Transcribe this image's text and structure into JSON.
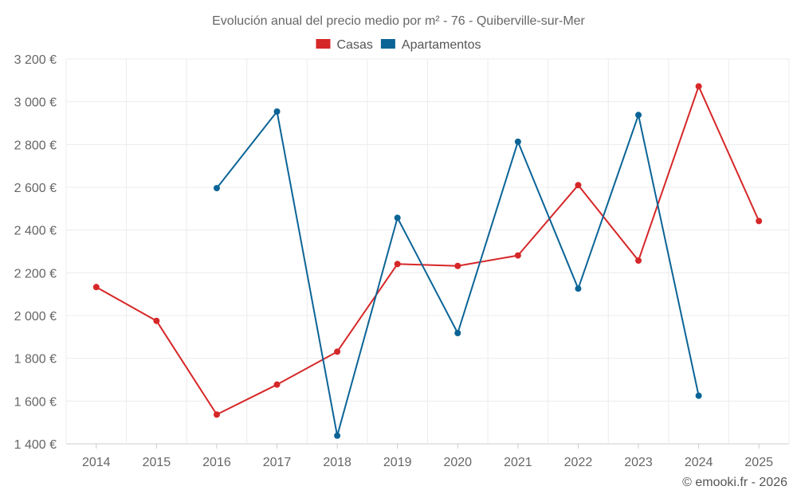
{
  "chart_data": {
    "type": "line",
    "title": "Evolución anual del precio medio por m² - 76 - Quiberville-sur-Mer",
    "categories": [
      "2014",
      "2015",
      "2016",
      "2017",
      "2018",
      "2019",
      "2020",
      "2021",
      "2022",
      "2023",
      "2024",
      "2025"
    ],
    "series": [
      {
        "name": "Casas",
        "color": "#d62728",
        "values": [
          2133,
          1975,
          1537,
          1677,
          1831,
          2241,
          2232,
          2281,
          2610,
          2257,
          3072,
          2442
        ]
      },
      {
        "name": "Apartamentos",
        "color": "#0b6496",
        "values": [
          null,
          null,
          2596,
          2954,
          1438,
          2457,
          1918,
          2813,
          2126,
          2938,
          1625,
          null
        ]
      }
    ],
    "ylim": [
      1400,
      3200
    ],
    "yticks": [
      1400,
      1600,
      1800,
      2000,
      2200,
      2400,
      2600,
      2800,
      3000,
      3200
    ],
    "ytick_labels": [
      "1 400 €",
      "1 600 €",
      "1 800 €",
      "2 000 €",
      "2 200 €",
      "2 400 €",
      "2 600 €",
      "2 800 €",
      "3 000 €",
      "3 200 €"
    ],
    "xlabel": "",
    "ylabel": "",
    "grid": true,
    "legend_position": "top-center"
  },
  "credit": "© emooki.fr - 2026"
}
